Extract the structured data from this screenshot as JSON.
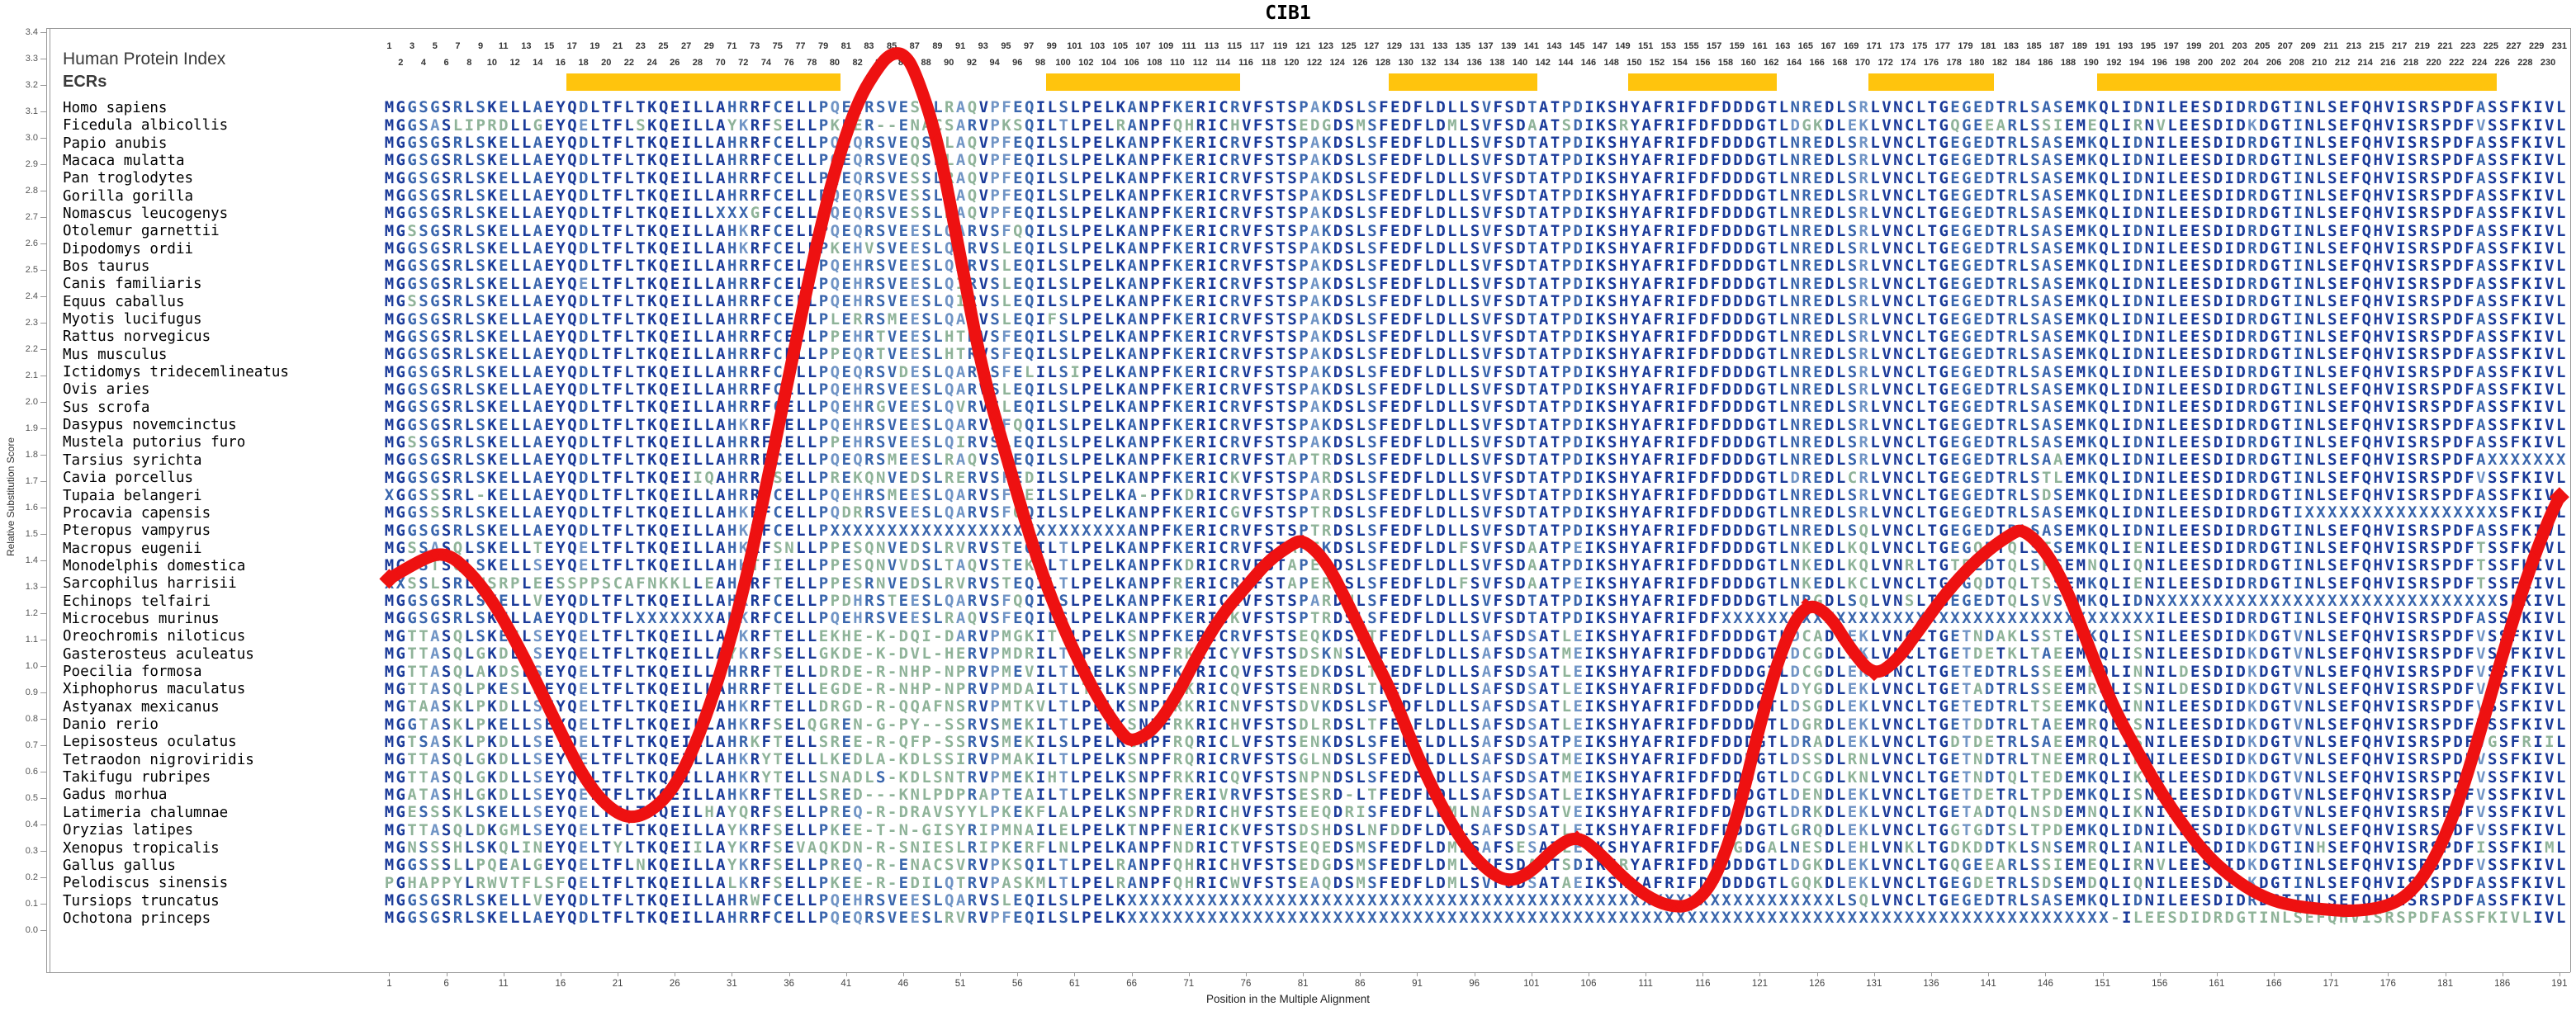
{
  "title": "CIB1",
  "header": {
    "index_label": "Human Protein Index",
    "ecr_label": "ECRs",
    "index_rule": {
      "count": 191,
      "break_after": 29,
      "resume_at": 70,
      "last": 231
    }
  },
  "yaxis": {
    "label": "Relative Substitution Score",
    "min": 0.0,
    "max": 3.4,
    "step": 0.1
  },
  "xaxis": {
    "label": "Position in the Multiple Alignment",
    "min": 1,
    "max": 191,
    "tick_step": 5
  },
  "colors": {
    "conserved": "#1b3b9a",
    "strong": "#3a66ad",
    "weak": "#7094c5",
    "variable": "#8fb399",
    "curve": "#ee1111",
    "ecr": "#ffc40d"
  },
  "ecr_bars": [
    [
      17,
      40
    ],
    [
      59,
      75
    ],
    [
      89,
      101
    ],
    [
      110,
      122
    ],
    [
      131,
      141
    ],
    [
      151,
      185
    ]
  ],
  "chart_data": {
    "type": "line",
    "title": "CIB1",
    "xlabel": "Position in the Multiple Alignment",
    "ylabel": "Relative Substitution Score",
    "xlim": [
      1,
      191
    ],
    "ylim": [
      0,
      3.4
    ],
    "grid": false,
    "legend": "none",
    "marker": "diamond-every-position",
    "series_name": "Relative Substitution Score",
    "keypoints": [
      [
        1,
        1.33
      ],
      [
        4,
        1.41
      ],
      [
        6,
        1.43
      ],
      [
        8,
        1.36
      ],
      [
        10,
        1.25
      ],
      [
        12,
        1.1
      ],
      [
        14,
        0.93
      ],
      [
        16,
        0.75
      ],
      [
        18,
        0.58
      ],
      [
        20,
        0.47
      ],
      [
        22,
        0.42
      ],
      [
        24,
        0.45
      ],
      [
        26,
        0.54
      ],
      [
        28,
        0.72
      ],
      [
        30,
        0.97
      ],
      [
        32,
        1.28
      ],
      [
        34,
        1.68
      ],
      [
        36,
        2.1
      ],
      [
        38,
        2.52
      ],
      [
        40,
        2.88
      ],
      [
        42,
        3.14
      ],
      [
        44,
        3.28
      ],
      [
        45,
        3.32
      ],
      [
        46,
        3.32
      ],
      [
        47,
        3.26
      ],
      [
        49,
        3.0
      ],
      [
        51,
        2.55
      ],
      [
        53,
        2.1
      ],
      [
        55,
        1.8
      ],
      [
        57,
        1.5
      ],
      [
        59,
        1.25
      ],
      [
        61,
        1.05
      ],
      [
        63,
        0.88
      ],
      [
        65,
        0.75
      ],
      [
        66,
        0.71
      ],
      [
        68,
        0.76
      ],
      [
        70,
        0.89
      ],
      [
        72,
        1.06
      ],
      [
        74,
        1.2
      ],
      [
        76,
        1.3
      ],
      [
        78,
        1.4
      ],
      [
        80,
        1.46
      ],
      [
        81,
        1.48
      ],
      [
        83,
        1.4
      ],
      [
        85,
        1.23
      ],
      [
        87,
        1.05
      ],
      [
        89,
        0.88
      ],
      [
        91,
        0.66
      ],
      [
        93,
        0.48
      ],
      [
        95,
        0.33
      ],
      [
        97,
        0.23
      ],
      [
        99,
        0.18
      ],
      [
        101,
        0.22
      ],
      [
        103,
        0.31
      ],
      [
        105,
        0.36
      ],
      [
        107,
        0.29
      ],
      [
        109,
        0.2
      ],
      [
        111,
        0.13
      ],
      [
        113,
        0.09
      ],
      [
        115,
        0.09
      ],
      [
        117,
        0.18
      ],
      [
        119,
        0.42
      ],
      [
        121,
        0.78
      ],
      [
        123,
        1.08
      ],
      [
        125,
        1.24
      ],
      [
        127,
        1.2
      ],
      [
        129,
        1.06
      ],
      [
        131,
        0.96
      ],
      [
        133,
        1.02
      ],
      [
        135,
        1.14
      ],
      [
        137,
        1.26
      ],
      [
        139,
        1.36
      ],
      [
        141,
        1.44
      ],
      [
        143,
        1.5
      ],
      [
        144,
        1.52
      ],
      [
        146,
        1.44
      ],
      [
        148,
        1.28
      ],
      [
        150,
        1.05
      ],
      [
        152,
        0.84
      ],
      [
        154,
        0.68
      ],
      [
        156,
        0.53
      ],
      [
        158,
        0.4
      ],
      [
        160,
        0.29
      ],
      [
        162,
        0.21
      ],
      [
        164,
        0.15
      ],
      [
        166,
        0.11
      ],
      [
        168,
        0.09
      ],
      [
        170,
        0.08
      ],
      [
        173,
        0.07
      ],
      [
        176,
        0.09
      ],
      [
        178,
        0.14
      ],
      [
        180,
        0.26
      ],
      [
        182,
        0.46
      ],
      [
        184,
        0.74
      ],
      [
        186,
        1.04
      ],
      [
        188,
        1.32
      ],
      [
        190,
        1.55
      ],
      [
        191,
        1.64
      ]
    ]
  },
  "species": [
    {
      "name": "Homo sapiens",
      "seq": "MGGSGSRLSKELLAEYQDLTFLTKQEILLAHRRFCELLPQEQRSVESSLRAQVPFEQILSLPELKANPFKERICRVFSTSPAKDSLSFEDFLDLLSVFSDTATPDIKSHYAFRIFDFDDDGTLNREDLSRLVNCLTGEGEDTRLSASEMKQLIDNILEESDIDRDGTINLSEFQHVISRSPDFASSFKIVL"
    },
    {
      "name": "Ficedula albicollis",
      "seq": "MGGSASLIPRDLLGEYQELTFLSKQEILLAYKRFSELLPKEER--ENACSARVPKSQILTLPELRANPFQHRICHVFSTSEDGDSMSFEDFLDMLSVFSDAATSDIKSRYAFRIFDFDDDGTLDGKDLEKLVNCLTGQGEEARLSSIEMEQLIRNVLEESDIDKDGTINLSEFQHVISRSPDFVSSFKIVL"
    },
    {
      "name": "Papio anubis",
      "seq": "MGGSGSRLSKELLAEYQDLTFLTKQEILLAHRRFCELLPQEQRSVEQSLLAQVPFEQILSLPELKANPFKERICRVFSTSPAKDSLSFEDFLDLLSVFSDTATPDIKSHYAFRIFDFDDDGTLNREDLSRLVNCLTGEGEDTRLSASEMKQLIDNILEESDIDRDGTINLSEFQHVISRSPDFASSFKIVL"
    },
    {
      "name": "Macaca mulatta",
      "seq": "MGGSGSRLSKELLAEYQDLTFLTKQEILLAHRRFCELLPQEQRSVEQSLLAQVPFEQILSLPELKANPFKERICRVFSTSPAKDSLSFEDFLDLLSVFSDTATPDIKSHYAFRIFDFDDDGTLNREDLSRLVNCLTGEGEDTRLSASEMKQLIDNILEESDIDRDGTINLSEFQHVISRSPDFASSFKIVL"
    },
    {
      "name": "Pan troglodytes",
      "seq": "MGGSGSRLSKELLAEYQDLTFLTKQEILLAHRRFCELLPQEQRSVESSLRAQVPFEQILSLPELKANPFKERICRVFSTSPAKDSLSFEDFLDLLSVFSDTATPDIKSHYAFRIFDFDDDGTLNREDLSRLVNCLTGEGEDTRLSASEMKQLIDNILEESDIDRDGTINLSEFQHVISRSPDFASSFKIVL"
    },
    {
      "name": "Gorilla gorilla",
      "seq": "MGGSGSRLSKELLAEYQDLTFLTKQEILLAHRRFCELLPQEQRSVESSLRAQVPFEQILSLPELKANPFKERICRVFSTSPAKDSLSFEDFLDLLSVFSDTATPDIKSHYAFRIFDFDDDGTLNREDLSRLVNCLTGEGEDTRLSASEMKQLIDNILEESDIDRDGTINLSEFQHVISRSPDFASSFKIVL"
    },
    {
      "name": "Nomascus leucogenys",
      "seq": "MGGSGSRLSKELLAEYQDLTFLTKQEILLXXXGFCELLPQEQRSVESSLRAQVPFEQILSLPELKANPFKERICRVFSTSPAKDSLSFEDFLDLLSVFSDTATPDIKSHYAFRIFDFDDDGTLNREDLSRLVNCLTGEGEDTRLSASEMKQLIDNILEESDIDRDGTINLSEFQHVISRSPDFASSFKIVL"
    },
    {
      "name": "Otolemur garnettii",
      "seq": "MGSSGSRLSKELLAEYQDLTFLTKQEILLAHKRFCELLPQEQRSVEESLQARVSFQQILSLPELKANPFKERICRVFSTSPAKDSLSFEDFLDLLSVFSDTATPDIKSHYAFRIFDFDDDGTLNREDLSRLVNCLTGEGEDTRLSASEMKQLIDNILEESDIDRDGTINLSEFQHVISRSPDFASSFKIVL"
    },
    {
      "name": "Dipodomys ordii",
      "seq": "MGGSGSRLSKELLAEYQDLTFLTKQEILLAHKRFCELLPKEHVSVEESLQARVSLEQILSLPELKANPFKERICRVFSTSPAKDSLSFEDFLDLLSVFSDTATPDIKSHYAFRIFDFDDDGTLNREDLSRLVNCLTGEGEDTRLSASEMKQLIDNILEESDIDRDGTINLSEFQHVISRSPDFASSFKIVL"
    },
    {
      "name": "Bos taurus",
      "seq": "MGGSGSRLSKELLAEYQDLTFLTKQEILLAHRRFCELLPQEHRSVEESLQARVSLEQILSLPELKANPFKERICRVFSTSPAKDSLSFEDFLDLLSVFSDTATPDIKSHYAFRIFDFDDDGTLNREDLSRLVNCLTGEGEDTRLSASEMKQLIDNILEESDIDRDGTINLSEFQHVISRSPDFASSFKIVL"
    },
    {
      "name": "Canis familiaris",
      "seq": "MGGSGSRLSKELLAEYQELTFLTKQEILLAHRRFCELLPQEHRSVEESLQIRVSLEQILSLPELKANPFKERICRVFSTSPAKDSLSFEDFLDLLSVFSDTATPDIKSHYAFRIFDFDDDGTLNREDLSRLVNCLTGEGEDTRLSASEMKQLIDNILEESDIDRDGTINLSEFQHVISRSPDFASSFKIVL"
    },
    {
      "name": "Equus caballus",
      "seq": "MGSSGSRLSKELLAEYQDLTFLTKQEILLAHRRFCELLPQEHRSVEESLQIRVSLEQILSLPELKANPFKERICRVFSTSPAKDSLSFEDFLDLLSVFSDTATPDIKSHYAFRIFDFDDDGTLNREDLSRLVNCLTGEGEDTRLSASEMKQLIDNILEESDIDRDGTINLSEFQHVISRSPDFASSFKIVL"
    },
    {
      "name": "Myotis lucifugus",
      "seq": "MGGSGSRLSKELLAEYQDLTFLTKQEILLAHRRFCELLPLERRSMEESLQARVSLEQIFSLPELKANPFKERICRVFSTSPAKDSLSFEDFLDLLSVFSDTATPDIKSHYAFRIFDFDDDGTLNREDLSRLVNCLTGEGEDTRLSASEMKQLIDNILEESDIDRDGTINLSEFQHVISRSPDFASSFKIVL"
    },
    {
      "name": "Rattus norvegicus",
      "seq": "MGGSGSRLSKELLAEYQDLTFLTKQEILLAHRRFCELLPPEHRTVEESLHTRVSFEQILSLPELKANPFKERICRVFSTSPAKDSLSFEDFLDLLSVFSDTATPDIKSHYAFRIFDFDDDGTLNREDLSRLVNCLTGEGEDTRLSASEMKQLIDNILEESDIDRDGTINLSEFQHVISRSPDFASSFKIVL"
    },
    {
      "name": "Mus musculus",
      "seq": "MGGSGSRLSKELLAEYQDLTFLTKQEILLAHRRFCELLPPEQRTVEESLHTRVSFEQILSLPELKANPFKERICRVFSTSPAKDSLSFEDFLDLLSVFSDTATPDIKSHYAFRIFDFDDDGTLNREDLSRLVNCLTGEGEDTRLSASEMKQLIDNILEESDIDRDGTINLSEFQHVISRSPDFASSFKIVL"
    },
    {
      "name": "Ictidomys tridecemlineatus",
      "seq": "MGGSGSRLSKELLAEYQDLTFLTKQEILLAHRRFCELLPQEQRSVDESLQARVSFELILSIPELKANPFKERICRVFSTSPAKDSLSFEDFLDLLSVFSDTATPDIKSHYAFRIFDFDDDGTLNREDLSRLVNCLTGEGEDTRLSASEMKQLIDNILEESDIDRDGTINLSEFQHVISRSPDFASSFKIVL"
    },
    {
      "name": "Ovis aries",
      "seq": "MGGSGSRLSKELLAEYQDLTFLTKQEILLAHRRFCELLPQEHRSVEESLQARVSLEQILSLPELKANPFKERICRVFSTSPAKDSLSFEDFLDLLSVFSDTATPDIKSHYAFRIFDFDDDGTLNREDLSRLVNCLTGEGEDTRLSASEMKQLIDNILEESDIDRDGTINLSEFQHVISRSPDFASSFKIVL"
    },
    {
      "name": "Sus scrofa",
      "seq": "MGGSGSRLSKELLAEYQDLTFLTKQEILLAHRRFCELLPQEHRGVEESLQVRVSLEQILSLPELKANPFKERICRVFSTSPAKDSLSFEDFLDLLSVFSDTATPDIKSHYAFRIFDFDDDGTLNREDLSRLVNCLTGEGEDTRLSASEMKQLIDNILEESDIDRDGTINLSEFQHVISRSPDFASSFKIVL"
    },
    {
      "name": "Dasypus novemcinctus",
      "seq": "MGGSGSRLSKELLAEYQDLTFLTKQEILLAHKRFCELLPQEHRSVEESLQARVSFQQILSLPELKANPFKERICRVFSTSPAKDSLSFEDFLDLLSVFSDTATPDIKSHYAFRIFDFDDDGTLNREDLSRLVNCLTGEGEDTRLSASEMKQLIDNILEESDIDRDGTINLSEFQHVISRSPDFASSFKIVL"
    },
    {
      "name": "Mustela putorius furo",
      "seq": "MGSSGSRLSKELLAEYQDLTFLTKQEILLAHRRFCELLPPEHRSVEESLQIRVSLEQILSLPELKANPFKERICRVFSTSPAKDSLSFEDFLDLLSVFSDTATPDIKSHYAFRIFDFDDDGTLNREDLSRLVNCLTGEGEDTRLSASEMKQLIDNILEESDIDRDGTINLSEFQHVISRSPDFASSFKIVL"
    },
    {
      "name": "Tarsius syrichta",
      "seq": "MGGSGSRLSKELLAEYQDLTFLTKQEILLAHRRFCELLPQEQRSMEESLRAQVSFEQILSLPELKANPFKERICRVFSTAPTRDSLSFEDFLDLLSVFSDTATPDIKSHYAFRIFDFDDDGTLNREDLSRLVNCLTGEGEDTRLSAAEMKQLIDNILEESDIDRDGTINLSEFQHVISRSPDFAXXXXXXX"
    },
    {
      "name": "Cavia porcellus",
      "seq": "MGGSGSRLSKELLAEYQDLTFLTKQEIIQAHRRFSELLPREKQNVEDSLRERVSFEDILSLPELKANPFKERICKVFSTSPARDSLSFEDFLDLLSVFSDTATPDIKSHYAFRIFDFDDDGTLDREDLCRLVNCLTGEGEDTRLSTLEMKQLIDNILEESDIDRDGTINLSEFQHVISRSPDFVSSFKIVL"
    },
    {
      "name": "Tupaia belangeri",
      "seq": "XGGSSSRL-KELLAEYQDLTFLTKQEILLAHRRFCELLPQEHRSMEESLQARVSFEEILSLPELKA-PFKDRICRVFSTSPARDSLSFEDFLDLLSVFSDTATPDIKSHYAFRIFDFDDDGTLNREDLSRLVNCLTGEGEDTRLSDSEMKQLIDNILEESDIDRDGTINLSEFQHVISRSPDFASSFKIVL"
    },
    {
      "name": "Procavia capensis",
      "seq": "MGGSSSRLSKELLAEYQDLTFLTKQEILLAHKRFCELLPQDRRSVEESLQARVSFQQILSLPELKANPFKERICGVFSTSPTRDSLSFEDFLDLLSVFSDTATPDIKSHYAFRIFDFDDDGTLNREDLSRLVNCLTGEGEDTRLSASEMKQLIDNILEESDIDRDGTIXXXXXXXXXXXXXXXXXSFKIVL"
    },
    {
      "name": "Pteropus vampyrus",
      "seq": "MGGSGSRLSKELLAEYQDLTFLTKQEILLAHKRFCELLPXXXXXXXXXXXXXXXXXXXXXXXXXXANPFKERICRVFSTSPTRDSLSFEDFLDLLSVFSDTATPDIKSHYAFRIFDFDDDGTLNREDLSQLVNCLTGEGEDTRLSASEMKQLIDNILEESDIDRDGTINLSEFQHVISRSPDFASSFKIVL"
    },
    {
      "name": "Macropus eugenii",
      "seq": "MGSSASQLSKELLTEYQELTFLTKQEILLAHKRFSNLLPPESQNVEDSLRVRVSTEQILTLPELKANPFKERICRVFSTAPEKDSLSFEDFLDLFSVFSDAATPEIKSHYAFRIFDFDDDGTLNKEDLKQLVNCLTGEGQDTQLSTSEMKQLIENILEESDIDRDGTINLSEFQHVISRSPDFTSSFKIVL"
    },
    {
      "name": "Monodelphis domestica",
      "seq": "MGSSTSQLSKELLSEYQELTFLTKQEILLAHKTFIELLPPESQNVVDSLTAQVSTEKVLTLPELKANPFKDRICRVFSTAPEKDSLSFEDFLDLLSVFSDAATPDIKSHYAFRIFDFDDDGTLNKEDLKQLVNRLTGTEEDTQLSPSEMNQLIQNILEESDIDRDGTINLSEFQHVISRSPDFTSSFKIVL"
    },
    {
      "name": "Sarcophilus harrisii",
      "seq": "XXSSLSRLNSRPLEESSPPSCAFNKKLLEAHRRFTELLPPESRNVEDSLRVRVSTEQILTLPELKANPFRERICRVFSTAPERDSLSFEDFLDLFSVFSDAATPEIKSHYAFRIFDFDDDGTLNKEDLKCLVNCLTGDGQDTQLTSSEMKQLIENILEESDIDRDGTINLSEFQHVISRSPDFTSSFKIVL"
    },
    {
      "name": "Echinops telfairi",
      "seq": "MGGSGSRLSKELLVEYQDLTFLTKQEILLAHKRFCELLPPDHRSTEESLQARVSFQQIFSLPELKANPFKERICRVFSTSPARDNLSFEDFLDLLSVFSDTATPDIKSHYAFRIFDFDDDGTLNRGDLSQLVNSLTGEGEDTQLSVSEMKQLIDNXXXXXXXXXXXXXXXXXXXXXXXXXXXXXXSFKIVL"
    },
    {
      "name": "Microcebus murinus",
      "seq": "MGGSGSRLSKELLAEYQDLTFLXXXXXXXAHKRFCELLPQEHRSVEESLRAQVSFEQILSLPELKANPFKERICKVFSTSPTRDSLSFEDFLDLLSVFSDTATPDIKSHYAFRIFDFXXXXXXXXXXXXXXXXXXXXXXXXXXXXXXXXXXXXXXILEESDIDRDGTINLSEFQHVISRSPDFASSFKIVL"
    },
    {
      "name": "Oreochromis niloticus",
      "seq": "MGTTASQLSKESLSEYQELTFLTKQEILLAHKRFTELLEKHE-K-DQI-DARVPMGKITTLPELKSNPFKERICRVFSTSEQKDSLTFEDFLDLLSAFSDSATLEIKSHYAFRIFDFDDDGTLDCADLEKLVNCLTGETNDAKLSSTEMKQLISNILEESDIDKDGTVNLSEFQHVISRSPDFVSSFKIVL"
    },
    {
      "name": "Gasterosteus aculeatus",
      "seq": "MGTTASQLGKDLLSEYQELTFLTKQEILLAYKRFSELLGKDE-K-DVL-HERVPMDRILTLPELKSNPFRKRICYVFSTSDSKNSLTFEDFLDLLSAFSDSATMEIKSHYAFRIFDFDDDGTLDCGDLEKLVNCLTGETDETKLTAEEMRQLISNILEESDIDKDGTVNLSEFQHVISRSPDFVSSFKIVL"
    },
    {
      "name": "Poecilia formosa",
      "seq": "MGTTASQLAKDSLSEYQELTFLTKQEILLAHRRFTELLDRDE-R-NHP-NPRVPMEVILTLPELKSNPFKTRICQVFSTSEDKDSLTFEDFLDLLSAFSDSATLEIKSHYAFRIFDFDDDGTLDCGDLEKLVNCLTGETEDTRLSSEEMRQLINNILDESDIDKDGTVNLSEFQHVISRSPDFVSSFKIVL"
    },
    {
      "name": "Xiphophorus maculatus",
      "seq": "MGTTASQLPKESLSEYQELTFLTKQEILLAHRRFTELLEGDE-R-NHP-NPRVPMDAILTLTELKSNPFKKRICQVFSTSENRDSLTFEDFLDLLSAFSDSATLEIKSHYAFRIFDFDDDGTLDYGDLEKLVNCLTGETADTRLSSEEMRQLISNILDESDIDKDGTVNLSEFQHVISRSPDFVSSFKIVL"
    },
    {
      "name": "Astyanax mexicanus",
      "seq": "MGTAASKLPKDLLSEYQELTFLTKQEILLAHKRFTELLDRGD-R-QQAFNSRVPMTKVLTLPELKSNPFRKRICNVFSTSDVKDSLSFEDFLDLLSAFSDSATLEIKSHYAFRIFDFDDDGTLDSGDLEKLVNCLTGETEDTRLTSEEMKQLINNILEESDIDKDGTVNLSEFQHVISRSPDFVSSFKIVL"
    },
    {
      "name": "Danio rerio",
      "seq": "MGGTASKLPKELLSEYQELTFLTKQEILLAHKRFSELQGREN-G-PY--SSRVSMEKILTLPELKSNPFRKRICHVFSTSDLRDSLTFEDFLDLLSAFSDSATLEIKSHYAFRIFDFDDDGTLDGRDLEKLVNCLTGETDDTRLTAEEMRQLISNILEESDIDKDGTVNLSEFQHVISRSPDFVSSFKIVL"
    },
    {
      "name": "Lepisosteus oculatus",
      "seq": "MGTSASKLPKDLLSEYQELTFLTKQEILLAHRKFTELLSREE-R-QFP-SSRVSMEKILSLPELKCNPFRQRICLVFSTSENKDSLSFEDFLDLLSAFSDSATPEIKSHYAFRIFDFDDDGTLDRADLEKLVNCLTGDTDETRLSAEEMRQLISNILEESDIDKDGTVNLSEFQHVISRSPDFVGSFRIIL"
    },
    {
      "name": "Tetraodon nigroviridis",
      "seq": "MGTTASQLGKDLLSEYQELTFLTKQEILLAHKRYTELLLKEDLA-KDLSSIRVPMAKILTLPELKSNPFRQRICRVFSTSGLNDSLSFEDFLDLLSAFSDSATMEIKSHYAFRIFDFDDDGTLDSSDLRNLVNCLTGETNDTRLTNEEMRQLIKNILEESDIDKDGTVNLSEFQHVISRSPDFVSSFKIVL"
    },
    {
      "name": "Takifugu rubripes",
      "seq": "MGTTASQLGKDLLSEYQELTFLTKQEILLAHKRYTELLSNADLS-KDLSNTRVPMEKIHTLPELKSNPFRKRICQVFSTSNPNDSLSFEDFLDLLSAFSDSATMEIKSHYAFRIFDFDDDGTLDCGDLKNLVNCLTGETNDTQLTEDEMKQLIKNILEESDIDKDGTVNLSEFQHVISRSPDFVSSFKIVL"
    },
    {
      "name": "Gadus morhua",
      "seq": "MGATASHLGKDLLSEYQELTFLTKQEILLAHKRFTELLSRED---KNLPDPRAPTEAILTLPELKSNPFRERIVRVFSTSESRD-LTFEDFLDLLSAFSDSATLEIKSHYAFRIFDFDDDGTLDENDLEKLVNCLTGETDETRLTPDEMKQLISNILEESDIDKDGTVNLSEFQHVISRSPDFVSSFKIVL"
    },
    {
      "name": "Latimeria chalumnae",
      "seq": "MGESSSKLSKELLSEYQELTFLTKQEILHAYQRFSELLPREQ-R-DRAVSYYLPKEKFLALPELKSNPFRDRICHVFSTSEEQDRISFEDFLDMLNAFSDSATVEIKSHYAFRIFDFDDDGTLDRKDLEKLVNCLTGETADTQLNSDEMNQLIKNILEESDIDKDGTVNLSEFQHVISRSPDFVSSFKIVL"
    },
    {
      "name": "Oryzias latipes",
      "seq": "MGTTASQLDKGMLSEYQELTFLTKQEILLAYKRFSELLPKEE-T-N-GISYRIPMNAILELPELKTNPFNERICKVFSTSDSHDSLNFDDFLDLLSAFSDSATLEIKSHYAFRIFDFDDDGTLGRQDLEKLVNCLTGGTGDTSLTPDEMKQLIDNILEESDIDKDGTVNLSEFQHVISRSPDFVSSFKIVL"
    },
    {
      "name": "Xenopus tropicalis",
      "seq": "MGNSSSHLSKQLINEYQELTYLTKQEIILAYKRFSEVAQKDN-R-SNIESLRIPKERFLNLPELKANPFNDRICTVFSTSEQEDSMSFEDFLDMLSAFSESATLEVKSHYAFRIFDFDGDGALNESDLEHLVNKLTGDKDDTKLSNSEMRQLIANILEESDIDKDGTINHSEFQHVISRSPDFISSFKIML"
    },
    {
      "name": "Gallus gallus",
      "seq": "MGGSSSLLPQEALGEYQELTFLNKQEILLAYKRFSELLPREQ-R-ENACSVRVPKSQILTLPELRANPFQHRICHVFSTSEDGDSMSFEDFLDMLSVFSDAATSDIKSRYAFRIFDFDDDGTLDGKDLEKLVNCLTGQGEEARLSSIEMEQLIRNVLEESDIDKDGTINLSEFQHVISRSPDFVSSFKIVL"
    },
    {
      "name": "Pelodiscus sinensis",
      "seq": "PGHAPPYLRWVTFLSFQELTFLTKQEILLALKRFSELLPKEE-R-EDILQTRVPASKMLTLPELRANPFQHRICWVFSTSEAQDSMSFEDFLDMLSVFSDSATAEIKSHYAFRIFDFDDDGTLGQKDLEKLVNCLTGEGDETRLSDSEMDQLIQNILEESDIDKDGTINLSEFQHVISRSPDFASSFKIVL"
    },
    {
      "name": "Tursiops truncatus",
      "seq": "MGGSGSRLSKELLVEYQDLTFLTKQEILLAHRWFCELLPQEHRSVEESLQARVSLEQILSLPELKXXXXXXXXXXXXXXXXXXXXXXXXXXXXXXXXXXXXXXXXXXXXXXXXXXXXXXXXXXXXXXLSQLVNCLTGEGEDTRLSASEMKQLIDNILEESDIDRDGTINLSEFQHVISRSPDFASSFKIVL"
    },
    {
      "name": "Ochotona princeps",
      "seq": "MGGSGSRLSKELLAEYQDLTFLTKQEILLAHRRFCELLPQEQRSVEESLRVRVPFEQILSLPELKXXXXXXXXXXXXXXXXXXXXXXXXXXXXXXXXXXXXXXXXXXXXXXXXXXXXXXXXXXXXXXXXXXXXXXXXXXXXXXXXXXXXXX-ILEESDIDRDGTINLSEFQHVISRSPDFASSFKIVL"
    }
  ]
}
